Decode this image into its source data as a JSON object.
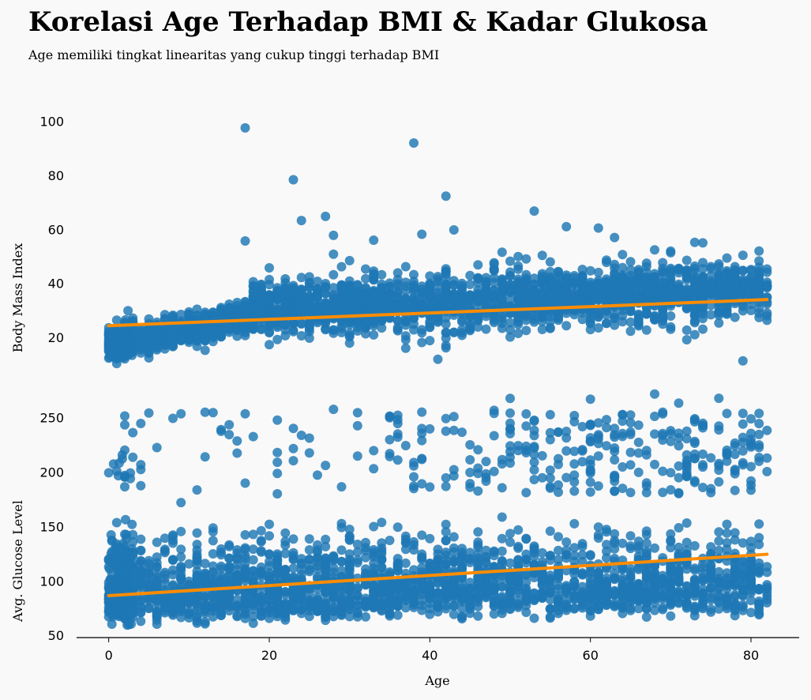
{
  "header": {
    "title": "Korelasi Age Terhadap BMI & Kadar Glukosa",
    "subtitle": "Age memiliki tingkat linearitas yang cukup tinggi terhadap BMI"
  },
  "colors": {
    "background": "#f9f9f9",
    "points": "#1f77b4",
    "regression": "#ff8c00"
  },
  "chart_data": [
    {
      "type": "scatter",
      "name": "bmi",
      "title": "",
      "xlabel": "",
      "ylabel": "Body Mass Index",
      "xlim": [
        -4,
        86
      ],
      "ylim": [
        8,
        104
      ],
      "yticks": [
        20,
        40,
        60,
        80,
        100
      ],
      "regression": {
        "x": [
          0,
          82
        ],
        "y": [
          24.3,
          34.0
        ]
      },
      "outliers": [
        {
          "x": 17,
          "y": 97.6
        },
        {
          "x": 38,
          "y": 92.0
        },
        {
          "x": 23,
          "y": 78.4
        },
        {
          "x": 42,
          "y": 72.3
        },
        {
          "x": 53,
          "y": 66.8
        },
        {
          "x": 27,
          "y": 64.8
        },
        {
          "x": 24,
          "y": 63.3
        },
        {
          "x": 61,
          "y": 60.5
        },
        {
          "x": 57,
          "y": 61.0
        },
        {
          "x": 43,
          "y": 59.8
        },
        {
          "x": 39,
          "y": 58.2
        },
        {
          "x": 28,
          "y": 57.8
        },
        {
          "x": 17,
          "y": 55.7
        },
        {
          "x": 73,
          "y": 55.2
        },
        {
          "x": 74,
          "y": 55.0
        },
        {
          "x": 63,
          "y": 57.0
        },
        {
          "x": 41,
          "y": 11.9
        },
        {
          "x": 79,
          "y": 11.3
        },
        {
          "x": 1,
          "y": 10.3
        },
        {
          "x": 68,
          "y": 52.4
        },
        {
          "x": 33,
          "y": 56.0
        }
      ]
    },
    {
      "type": "scatter",
      "name": "glucose",
      "title": "",
      "xlabel": "Age",
      "ylabel": "Avg. Glucose Level",
      "xlim": [
        -4,
        86
      ],
      "ylim": [
        48,
        278
      ],
      "xticks": [
        0,
        20,
        40,
        60,
        80
      ],
      "yticks": [
        50,
        100,
        150,
        200,
        250
      ],
      "regression": {
        "x": [
          0,
          82
        ],
        "y": [
          86.5,
          124.5
        ]
      },
      "outliers": [
        {
          "x": 68,
          "y": 271.7
        },
        {
          "x": 50,
          "y": 267.6
        },
        {
          "x": 60,
          "y": 267.0
        },
        {
          "x": 76,
          "y": 267.8
        },
        {
          "x": 71,
          "y": 263.3
        },
        {
          "x": 28,
          "y": 257.6
        },
        {
          "x": 48,
          "y": 256.7
        },
        {
          "x": 39,
          "y": 255.1
        },
        {
          "x": 15,
          "y": 234.4
        },
        {
          "x": 25,
          "y": 231.2
        },
        {
          "x": 4,
          "y": 206.8
        },
        {
          "x": 1,
          "y": 200.9
        },
        {
          "x": 21,
          "y": 209.0
        },
        {
          "x": 12,
          "y": 214.0
        },
        {
          "x": 9,
          "y": 172.0
        }
      ]
    }
  ]
}
